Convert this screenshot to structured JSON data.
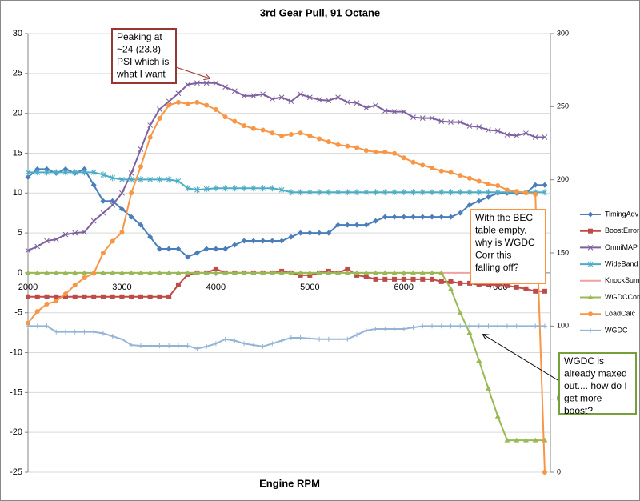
{
  "chart_data": {
    "type": "line",
    "title": "3rd Gear Pull, 91 Octane",
    "x_label": "Engine RPM",
    "x": [
      2000,
      2100,
      2200,
      2300,
      2400,
      2500,
      2600,
      2700,
      2800,
      2900,
      3000,
      3100,
      3200,
      3300,
      3400,
      3500,
      3600,
      3700,
      3800,
      3900,
      4000,
      4100,
      4200,
      4300,
      4400,
      4500,
      4600,
      4700,
      4800,
      4900,
      5000,
      5100,
      5200,
      5300,
      5400,
      5500,
      5600,
      5700,
      5800,
      5900,
      6000,
      6100,
      6200,
      6300,
      6400,
      6500,
      6600,
      6700,
      6800,
      6900,
      7000,
      7100,
      7200,
      7300,
      7400,
      7500
    ],
    "xlim": [
      2000,
      7560
    ],
    "xticks": [
      2000,
      3000,
      4000,
      5000,
      6000,
      7000
    ],
    "ylim": [
      -25,
      30
    ],
    "yticks": [
      -25,
      -20,
      -15,
      -10,
      -5,
      0,
      5,
      10,
      15,
      20,
      25,
      30
    ],
    "y2lim": [
      0,
      300
    ],
    "y2ticks": [
      0,
      50,
      100,
      150,
      200,
      250,
      300
    ],
    "grid": true,
    "legend": "right",
    "series": [
      {
        "name": "TimingAdv",
        "color": "#4a7ebb",
        "marker": "diamond",
        "values": [
          12,
          13,
          13,
          12.5,
          13,
          12.5,
          13,
          11,
          9,
          9,
          8,
          7,
          6,
          4.5,
          3,
          3,
          3,
          2,
          2.5,
          3,
          3,
          3,
          3.5,
          4,
          4,
          4,
          4,
          4,
          4.5,
          5,
          5,
          5,
          5,
          6,
          6,
          6,
          6,
          6.5,
          7,
          7,
          7,
          7,
          7,
          7,
          7,
          7,
          7.5,
          8.5,
          9,
          9.5,
          10,
          10,
          10,
          10,
          11,
          11
        ]
      },
      {
        "name": "BoostError",
        "color": "#be4b48",
        "marker": "square",
        "values": [
          -3,
          -3,
          -3,
          -3,
          -3,
          -3,
          -3,
          -3,
          -3,
          -3,
          -3,
          -3,
          -3,
          -3,
          -3,
          -3,
          -1.5,
          -0.2,
          0,
          0,
          0.5,
          0,
          0,
          0,
          0,
          0,
          0,
          0.2,
          0,
          -0.3,
          -0.3,
          0,
          0.2,
          0,
          0.5,
          -0.3,
          -0.5,
          -0.8,
          -0.8,
          -0.8,
          -0.8,
          -0.8,
          -0.8,
          -0.8,
          -1.1,
          -1.1,
          -1.3,
          -1.3,
          -1.5,
          -1.5,
          -1.5,
          -1.6,
          -1.8,
          -2,
          -2.3,
          -2.3
        ]
      },
      {
        "name": "OmniMAP",
        "color": "#7e60a0",
        "marker": "x",
        "values": [
          2.8,
          3.3,
          4,
          4.2,
          4.8,
          5,
          5.1,
          6.5,
          7.5,
          8.5,
          10,
          12.5,
          15.5,
          18.5,
          20.5,
          21.5,
          22.5,
          23.6,
          23.8,
          23.8,
          23.8,
          23.3,
          22.8,
          22.2,
          22.2,
          22.4,
          21.8,
          22,
          21.5,
          22.4,
          22,
          21.7,
          21.6,
          22,
          21.4,
          21.3,
          20.7,
          21,
          20.3,
          20.2,
          20.2,
          19.5,
          19.4,
          19.4,
          19,
          18.9,
          18.9,
          18.4,
          18.3,
          17.9,
          17.8,
          17.3,
          17.2,
          17.5,
          17,
          17
        ]
      },
      {
        "name": "WideBand",
        "color": "#4bacc6",
        "marker": "asterisk",
        "values": [
          12.6,
          12.6,
          12.6,
          12.6,
          12.6,
          12.6,
          12.6,
          12.6,
          12.3,
          11.9,
          11.7,
          11.7,
          11.7,
          11.7,
          11.7,
          11.7,
          11.5,
          10.6,
          10.4,
          10.5,
          10.6,
          10.6,
          10.6,
          10.6,
          10.6,
          10.6,
          10.6,
          10.4,
          10.1,
          10.1,
          10.1,
          10.1,
          10.1,
          10.1,
          10.1,
          10.1,
          10.1,
          10.1,
          10.1,
          10.1,
          10.1,
          10.1,
          10.1,
          10.1,
          10.1,
          10.1,
          10.1,
          10.1,
          10.1,
          10.1,
          10.1,
          10.1,
          10.1,
          10.1,
          10.1,
          10.1
        ]
      },
      {
        "name": "KnockSum",
        "color": "#f2a0a0",
        "marker": "none",
        "values": [
          0,
          0,
          0,
          0,
          0,
          0,
          0,
          0,
          0,
          0,
          0,
          0,
          0,
          0,
          0,
          0,
          0,
          0,
          0,
          0,
          0,
          0,
          0,
          0,
          0,
          0,
          0,
          0,
          0,
          0,
          0,
          0,
          0,
          0,
          0,
          0,
          0,
          0,
          0,
          0,
          0,
          0,
          0,
          0,
          0,
          0,
          0,
          0,
          0,
          0,
          0,
          0,
          0,
          0,
          0,
          0
        ]
      },
      {
        "name": "WGDCCorr",
        "color": "#98b954",
        "marker": "triangle",
        "values": [
          0,
          0,
          0,
          0,
          0,
          0,
          0,
          0,
          0,
          0,
          0,
          0,
          0,
          0,
          0,
          0,
          0,
          0,
          0,
          0,
          0,
          0,
          0,
          0,
          0,
          0,
          0,
          0,
          0,
          0,
          0,
          0,
          0,
          0,
          0,
          0,
          0,
          0,
          0,
          0,
          0,
          0,
          0,
          0,
          0,
          -2,
          -5,
          -7.5,
          -11,
          -14.5,
          -18,
          -21,
          -21,
          -21,
          -21,
          -21
        ]
      },
      {
        "name": "LoadCalc",
        "color": "#f79646",
        "marker": "circle",
        "axis": "y2",
        "values": [
          102,
          110,
          115,
          117,
          122,
          128,
          133,
          136,
          150,
          158,
          164,
          191,
          209,
          229,
          242,
          251,
          253,
          252,
          253,
          251,
          248,
          243,
          240,
          237,
          235,
          234,
          232,
          230,
          231,
          232,
          230,
          228,
          226,
          224,
          223,
          222,
          220,
          219,
          219,
          218,
          215,
          212,
          210,
          208,
          206,
          205,
          203,
          201,
          199,
          197,
          196,
          193,
          192,
          191,
          190,
          0
        ]
      },
      {
        "name": "WGDC",
        "color": "#95b3d7",
        "marker": "plus",
        "axis": "y2",
        "values": [
          100,
          100,
          100,
          96,
          96,
          96,
          96,
          96,
          95,
          93,
          91,
          87,
          86.5,
          86.5,
          86.5,
          86.5,
          86.5,
          86.5,
          84.5,
          86,
          88,
          91,
          90,
          88,
          87,
          86,
          88,
          90,
          92,
          92,
          91.5,
          91,
          91,
          91,
          91,
          94,
          97,
          98,
          98,
          98,
          98,
          99,
          100,
          100,
          100,
          100,
          100,
          100,
          100,
          100,
          100,
          100,
          100,
          100,
          100,
          100
        ]
      }
    ],
    "annotations": [
      {
        "lines": [
          "Peaking at",
          "~24 (23.8)",
          "PSI which is",
          "what I want"
        ],
        "color": "#953735"
      },
      {
        "lines": [
          "With the BEC",
          "table empty,",
          "why is WGDC",
          "Corr this",
          "falling off?"
        ],
        "color": "#f79646"
      },
      {
        "lines": [
          "WGDC is",
          "already maxed",
          "out.... how do I",
          "get more",
          "boost?"
        ],
        "color": "#77a03a"
      }
    ]
  }
}
